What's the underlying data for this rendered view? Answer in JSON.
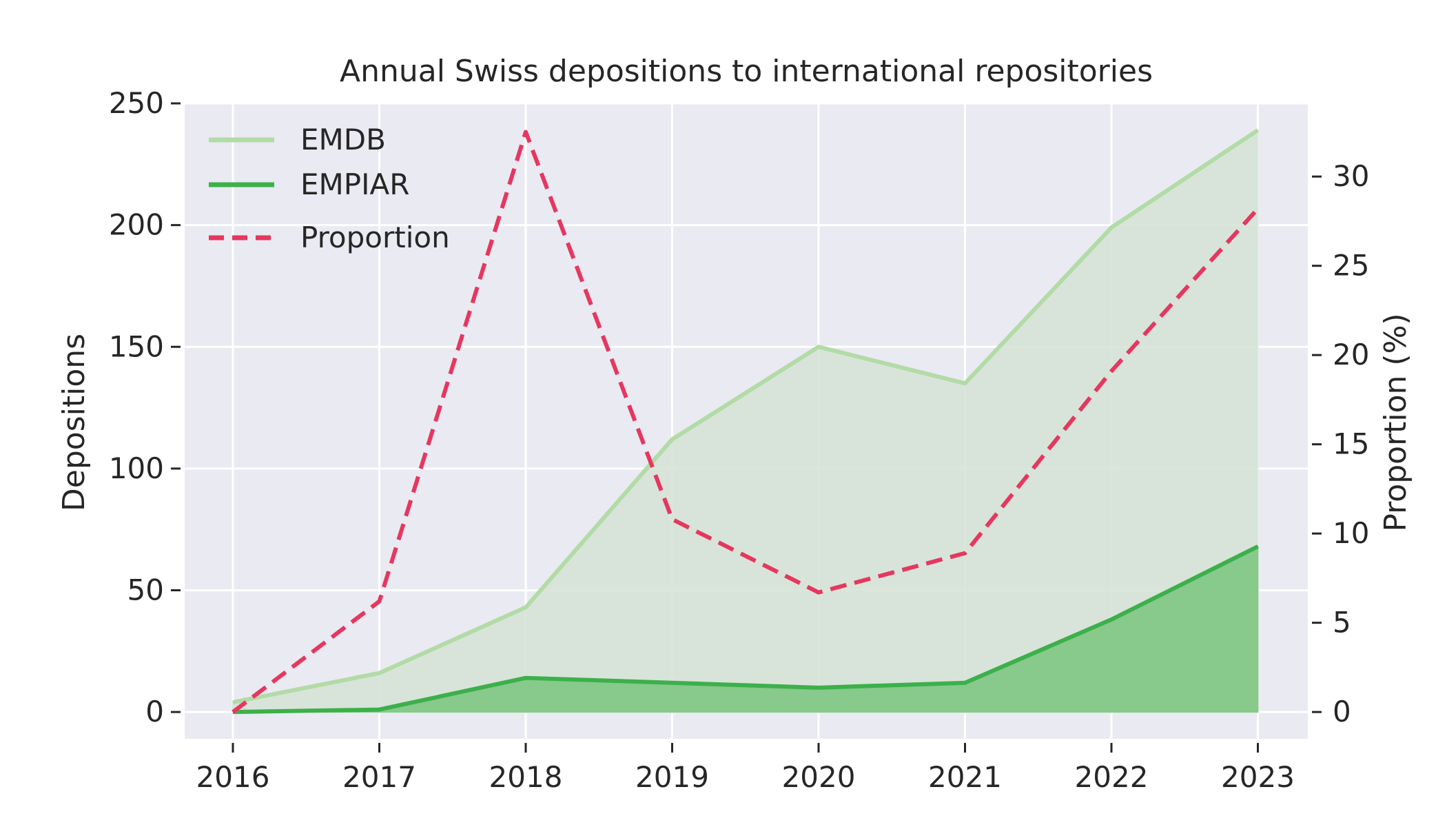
{
  "chart_data": {
    "type": "line",
    "title": "Annual Swiss depositions to international repositories",
    "x": [
      "2016",
      "2017",
      "2018",
      "2019",
      "2020",
      "2021",
      "2022",
      "2023"
    ],
    "series": [
      {
        "name": "EMDB",
        "axis": "left",
        "style": "solid",
        "fill": true,
        "color": "#b2dba6",
        "fill_color": "#d7e4d7",
        "values": [
          4,
          16,
          43,
          112,
          150,
          135,
          199,
          239
        ]
      },
      {
        "name": "EMPIAR",
        "axis": "left",
        "style": "solid",
        "fill": true,
        "color": "#3cb04a",
        "fill_color": "#88c98c",
        "values": [
          0,
          1,
          14,
          12,
          10,
          12,
          38,
          68
        ]
      },
      {
        "name": "Proportion",
        "axis": "right",
        "style": "dashed",
        "fill": false,
        "color": "#e6375f",
        "values": [
          0,
          6.2,
          32.5,
          10.8,
          6.7,
          8.9,
          19.1,
          28.2
        ]
      }
    ],
    "ylabel": "Depositions",
    "ylim": [
      -11,
      250
    ],
    "yticks": [
      "0",
      "50",
      "100",
      "150",
      "200",
      "250"
    ],
    "y2label": "Proportion (%)",
    "y2lim": [
      -1.5,
      34.1
    ],
    "y2ticks": [
      "0",
      "5",
      "10",
      "15",
      "20",
      "25",
      "30"
    ],
    "grid": true,
    "legend_position": "top-left",
    "background_color": "#eaeaf2"
  }
}
